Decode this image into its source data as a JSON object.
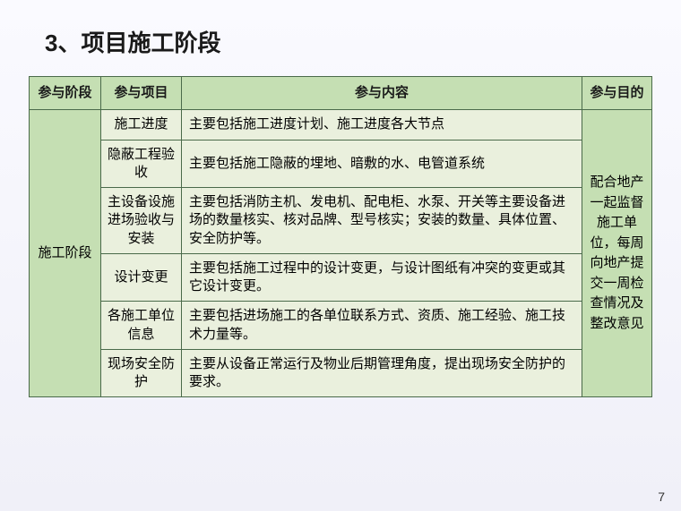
{
  "title": "3、项目施工阶段",
  "headers": {
    "stage": "参与阶段",
    "item": "参与项目",
    "content": "参与内容",
    "purpose": "参与目的"
  },
  "stage_label": "施工阶段",
  "purpose_text": "配合地产一起监督施工单位，每周向地产提交一周检查情况及整改意见",
  "rows": [
    {
      "item": "施工进度",
      "content": "主要包括施工进度计划、施工进度各大节点"
    },
    {
      "item": "隐蔽工程验收",
      "content": "主要包括施工隐蔽的埋地、暗敷的水、电管道系统"
    },
    {
      "item": "主设备设施进场验收与安装",
      "content": "主要包括消防主机、发电机、配电柜、水泵、开关等主要设备进场的数量核实、核对品牌、型号核实；安装的数量、具体位置、安全防护等。"
    },
    {
      "item": "设计变更",
      "content": "主要包括施工过程中的设计变更，与设计图纸有冲突的变更或其它设计变更。"
    },
    {
      "item": "各施工单位信息",
      "content": "主要包括进场施工的各单位联系方式、资质、施工经验、施工技术力量等。"
    },
    {
      "item": "现场安全防护",
      "content": "主要从设备正常运行及物业后期管理角度，提出现场安全防护的要求。"
    }
  ],
  "page_number": "7",
  "colors": {
    "header_bg": "#c5dfb3",
    "cell_bg": "#eaf0dd",
    "border": "#4a6a4a"
  }
}
